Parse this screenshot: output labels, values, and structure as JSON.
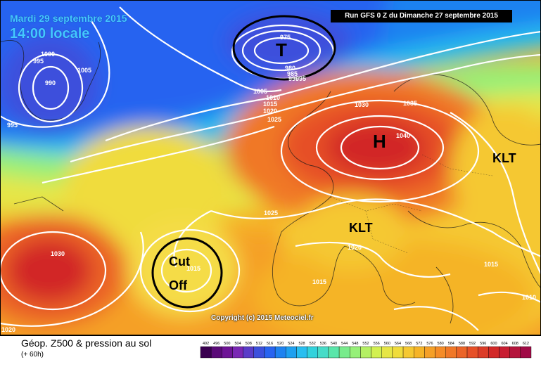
{
  "header": {
    "date": "Mardi 29 septembre 2015",
    "time": "14:00 locale",
    "run": "Run GFS 0 Z du Dimanche 27 septembre 2015"
  },
  "annotations": {
    "T": "T",
    "H": "H",
    "KLT_east": "KLT",
    "KLT_central": "KLT",
    "cut": "Cut",
    "off": "Off"
  },
  "isobars": {
    "l1000": "1000",
    "l995a": "995",
    "l990": "990",
    "l1005a": "1005",
    "l995b": "995",
    "l975": "975",
    "l980": "980",
    "l985": "985",
    "l990b": "990",
    "l995c": "995",
    "l1005b": "1005",
    "l1010": "1010",
    "l1015": "1015",
    "l1020": "1020",
    "l1025": "1025",
    "l1030a": "1030",
    "l1035": "1035",
    "l1040": "1040",
    "l1025b": "1025",
    "l1020b": "1020",
    "l1030b": "1030",
    "l1015b": "1015",
    "l1015c": "1015",
    "l1015d": "1015",
    "l1010b": "1010",
    "l1020c": "1020"
  },
  "copyright": "Copyright (c) 2015 Meteociel.fr",
  "legend": {
    "title": "Géop. Z500 & pression au sol",
    "subtitle": "(+ 60h)",
    "scale_values": [
      "492",
      "496",
      "500",
      "504",
      "508",
      "512",
      "516",
      "520",
      "524",
      "528",
      "532",
      "536",
      "540",
      "544",
      "548",
      "552",
      "556",
      "560",
      "564",
      "568",
      "572",
      "576",
      "580",
      "584",
      "588",
      "592",
      "596",
      "600",
      "604",
      "608",
      "612"
    ],
    "scale_colors": [
      "#3a0050",
      "#5a0a78",
      "#6e1496",
      "#7a28b4",
      "#5a3cc8",
      "#3c50dc",
      "#2864f0",
      "#1e82f0",
      "#1ea0f0",
      "#28bef0",
      "#32d2dc",
      "#46dcc8",
      "#5ae6aa",
      "#78eb8c",
      "#96f078",
      "#b4f064",
      "#d2f050",
      "#e6e646",
      "#f0dc3c",
      "#f5c832",
      "#f5b428",
      "#f5a028",
      "#f58c28",
      "#f07828",
      "#eb6428",
      "#e65028",
      "#dc3c28",
      "#d22828",
      "#c81e32",
      "#b4143c",
      "#a00a46"
    ]
  }
}
